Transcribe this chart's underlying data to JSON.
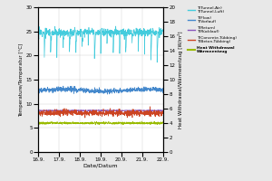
{
  "xlabel": "Date/Datum",
  "ylabel_left": "Temperature/Temperatur [°C]",
  "ylabel_right": "Heat Withdrawal/Wärmeentzug [W/m²]",
  "x_ticks": [
    "16.9.",
    "17.9.",
    "18.9.",
    "19.9.",
    "20.9.",
    "21.9.",
    "22.9."
  ],
  "ylim_left": [
    0,
    30
  ],
  "ylim_right": [
    0,
    20
  ],
  "yticks_left": [
    0,
    5,
    10,
    15,
    20,
    25,
    30
  ],
  "yticks_right": [
    0,
    2,
    4,
    6,
    8,
    10,
    12,
    14,
    16,
    18,
    20
  ],
  "bg_color": "#e8e8e8",
  "plot_bg_color": "#ffffff",
  "grid_color": "#cccccc",
  "tunnel_air_color": "#44ccdd",
  "flow_color": "#4488cc",
  "return_color": "#8855bb",
  "concrete_color": "#cc4422",
  "heat_withdrawal_color": "#99bb00",
  "legend_entries": [
    {
      "label": "T(Tunnel-Air)\nT(Tunnel-Luft)",
      "color": "#44ccdd",
      "bold": false
    },
    {
      "label": "T(Flow)\nT(Vorlauf)",
      "color": "#4488cc",
      "bold": false
    },
    {
      "label": "T(Return)\nT(Rücklauf)",
      "color": "#8855bb",
      "bold": false
    },
    {
      "label": "T(Concrete-Tübbing)\nT(Beton-Tübbing)",
      "color": "#cc4422",
      "bold": false
    },
    {
      "label": "Heat Withdrawal\nWärmeentzug",
      "color": "#99bb00",
      "bold": true
    }
  ],
  "tunnel_air_mean": 24.8,
  "flow_mean": 12.8,
  "return_mean": 8.6,
  "concrete_mean": 8.1,
  "heat_mean": 4.0
}
